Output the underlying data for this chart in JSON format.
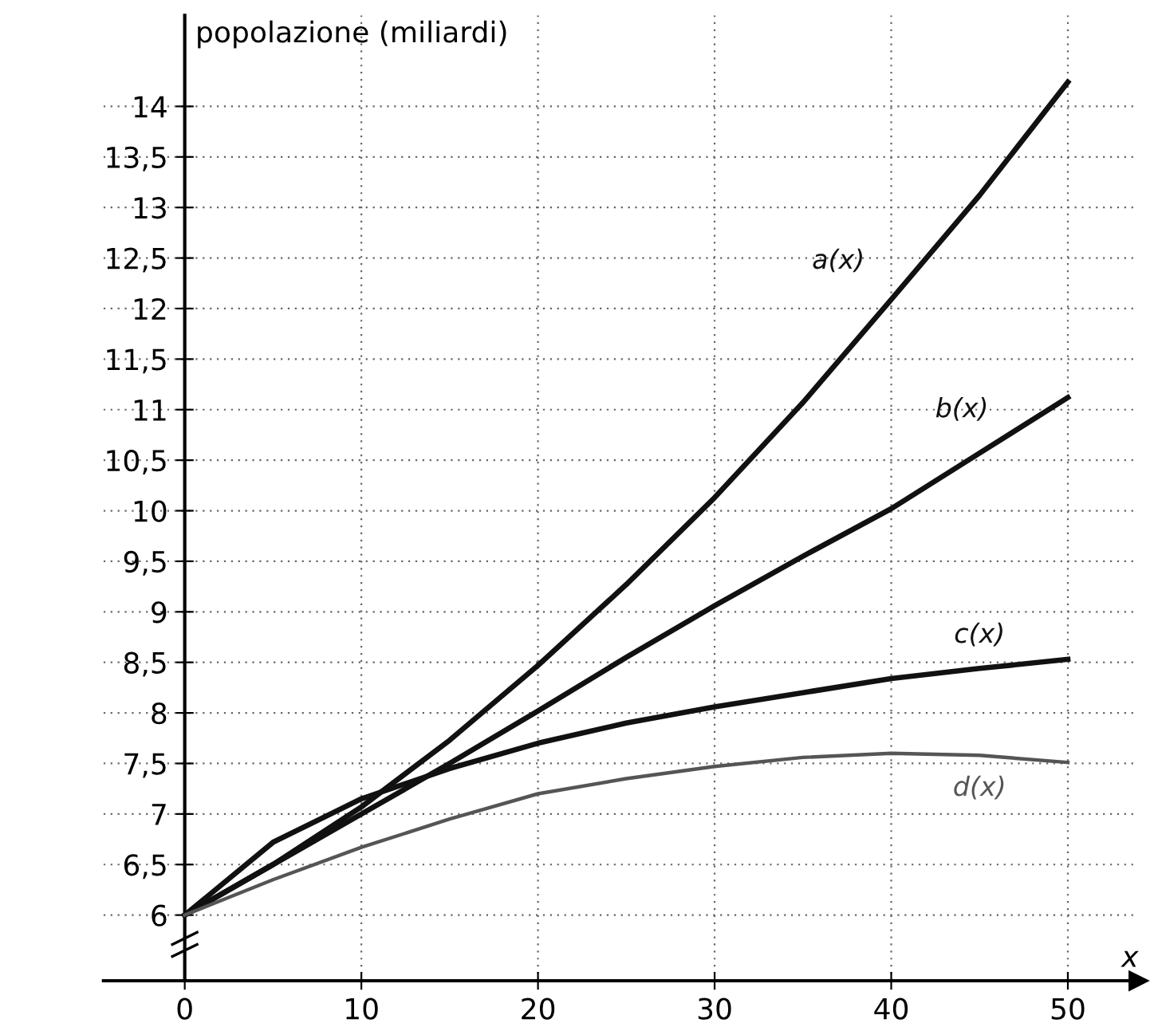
{
  "chart_data": {
    "type": "line",
    "ylabel": "popolazione (miliardi)",
    "xlabel": "x",
    "x": [
      0,
      5,
      10,
      15,
      20,
      25,
      30,
      35,
      40,
      45,
      50
    ],
    "series": [
      {
        "name": "a(x)",
        "color": "#111111",
        "values": [
          6,
          6.5,
          7.07,
          7.73,
          8.47,
          9.27,
          10.13,
          11.07,
          12.09,
          13.12,
          14.24
        ]
      },
      {
        "name": "b(x)",
        "color": "#111111",
        "values": [
          6,
          6.5,
          7.0,
          7.5,
          8.02,
          8.55,
          9.06,
          9.55,
          10.02,
          10.57,
          11.12
        ]
      },
      {
        "name": "c(x)",
        "color": "#111111",
        "values": [
          6,
          6.72,
          7.15,
          7.45,
          7.7,
          7.9,
          8.06,
          8.2,
          8.34,
          8.44,
          8.53
        ]
      },
      {
        "name": "d(x)",
        "color": "#555555",
        "values": [
          6,
          6.35,
          6.67,
          6.95,
          7.2,
          7.35,
          7.47,
          7.56,
          7.6,
          7.58,
          7.51
        ]
      }
    ],
    "xlim": [
      -4.6,
      54
    ],
    "ylim": [
      5.35,
      14.9
    ],
    "xticks": [
      0,
      10,
      20,
      30,
      40,
      50
    ],
    "yticks": [
      6,
      {
        "value": 6.5,
        "label": "6,5"
      },
      7,
      {
        "value": 7.5,
        "label": "7,5"
      },
      8,
      {
        "value": 8.5,
        "label": "8,5"
      },
      9,
      {
        "value": 9.5,
        "label": "9,5"
      },
      10,
      {
        "value": 10.5,
        "label": "10,5"
      },
      11,
      {
        "value": 11.5,
        "label": "11,5"
      },
      12,
      {
        "value": 12.5,
        "label": "12,5"
      },
      13,
      {
        "value": 13.5,
        "label": "13,5"
      },
      14
    ],
    "grid": true,
    "line_style": "solid",
    "marker": "none"
  }
}
